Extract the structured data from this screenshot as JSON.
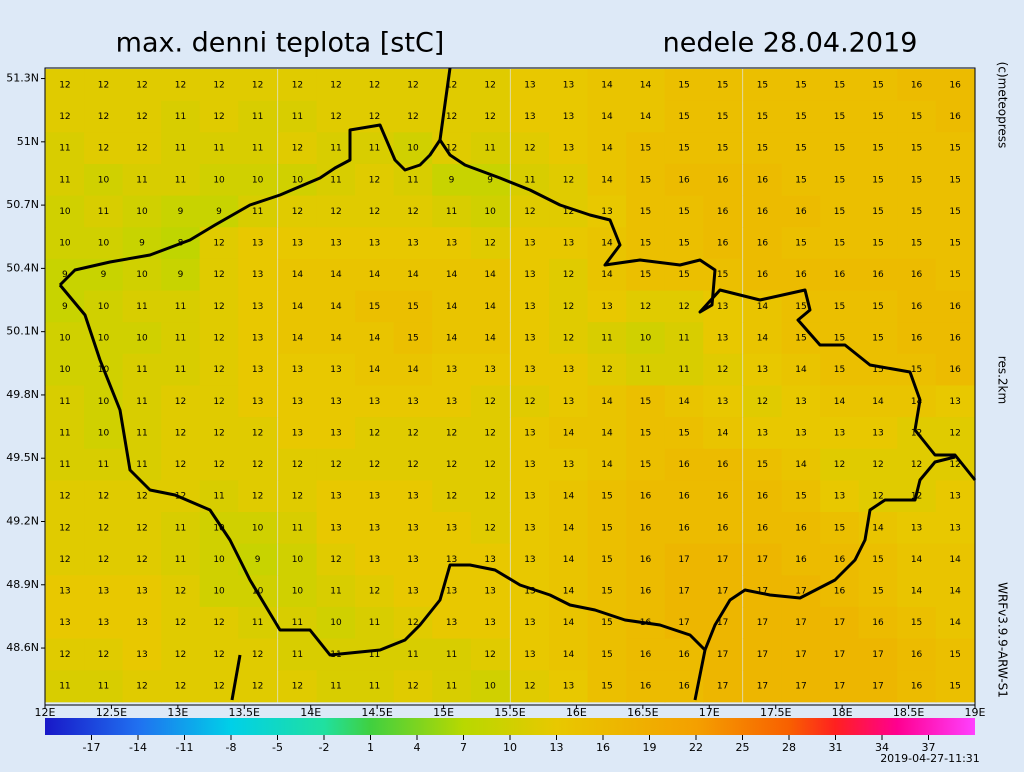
{
  "chart_data": {
    "type": "grid-map",
    "title": "max. denni teplota [stC]",
    "subtitle": "nedele 28.04.2019",
    "annotations": [
      "(c)meteopress",
      "res.2km",
      "WRFv3.9.9-ARW-S1",
      "2019-04-27-11:31"
    ],
    "xlim": [
      12,
      19
    ],
    "ylim": [
      48.33,
      51.35
    ],
    "xticks": [
      {
        "value": 12,
        "label": "12E"
      },
      {
        "value": 12.5,
        "label": "12.5E"
      },
      {
        "value": 13,
        "label": "13E"
      },
      {
        "value": 13.5,
        "label": "13.5E"
      },
      {
        "value": 14,
        "label": "14E"
      },
      {
        "value": 14.5,
        "label": "14.5E"
      },
      {
        "value": 15,
        "label": "15E"
      },
      {
        "value": 15.5,
        "label": "15.5E"
      },
      {
        "value": 16,
        "label": "16E"
      },
      {
        "value": 16.5,
        "label": "16.5E"
      },
      {
        "value": 17,
        "label": "17E"
      },
      {
        "value": 17.5,
        "label": "17.5E"
      },
      {
        "value": 18,
        "label": "18E"
      },
      {
        "value": 18.5,
        "label": "18.5E"
      },
      {
        "value": 19,
        "label": "19E"
      }
    ],
    "yticks": [
      {
        "value": 51.3,
        "label": "51.3N"
      },
      {
        "value": 51,
        "label": "51N"
      },
      {
        "value": 50.7,
        "label": "50.7N"
      },
      {
        "value": 50.4,
        "label": "50.4N"
      },
      {
        "value": 50.1,
        "label": "50.1N"
      },
      {
        "value": 49.8,
        "label": "49.8N"
      },
      {
        "value": 49.5,
        "label": "49.5N"
      },
      {
        "value": 49.2,
        "label": "49.2N"
      },
      {
        "value": 48.9,
        "label": "48.9N"
      },
      {
        "value": 48.6,
        "label": "48.6N"
      }
    ],
    "x": [
      12.15,
      12.44,
      12.73,
      13.02,
      13.31,
      13.6,
      13.9,
      14.19,
      14.48,
      14.77,
      15.06,
      15.35,
      15.65,
      15.94,
      16.23,
      16.52,
      16.81,
      17.1,
      17.4,
      17.69,
      17.98,
      18.27,
      18.56,
      18.85
    ],
    "y": [
      51.27,
      51.12,
      50.97,
      50.82,
      50.67,
      50.52,
      50.37,
      50.22,
      50.07,
      49.92,
      49.77,
      49.62,
      49.47,
      49.32,
      49.17,
      49.02,
      48.87,
      48.72,
      48.57,
      48.42
    ],
    "values": [
      [
        12,
        12,
        12,
        12,
        12,
        12,
        12,
        12,
        12,
        12,
        12,
        12,
        13,
        13,
        14,
        14,
        15,
        15,
        15,
        15,
        15,
        15,
        16,
        16
      ],
      [
        12,
        12,
        12,
        11,
        12,
        11,
        11,
        12,
        12,
        12,
        12,
        12,
        13,
        13,
        14,
        14,
        15,
        15,
        15,
        15,
        15,
        15,
        15,
        16
      ],
      [
        11,
        12,
        12,
        11,
        11,
        11,
        12,
        11,
        11,
        10,
        12,
        11,
        12,
        13,
        14,
        15,
        15,
        15,
        15,
        15,
        15,
        15,
        15,
        15
      ],
      [
        11,
        10,
        11,
        11,
        10,
        10,
        10,
        11,
        12,
        11,
        9,
        9,
        11,
        12,
        14,
        15,
        16,
        16,
        16,
        15,
        15,
        15,
        15,
        15
      ],
      [
        10,
        11,
        10,
        9,
        9,
        11,
        12,
        12,
        12,
        12,
        11,
        10,
        12,
        12,
        13,
        15,
        15,
        16,
        16,
        16,
        15,
        15,
        15,
        15
      ],
      [
        10,
        10,
        9,
        8,
        12,
        13,
        13,
        13,
        13,
        13,
        13,
        12,
        13,
        13,
        14,
        15,
        15,
        16,
        16,
        15,
        15,
        15,
        15,
        15
      ],
      [
        9,
        9,
        10,
        9,
        12,
        13,
        14,
        14,
        14,
        14,
        14,
        14,
        13,
        12,
        14,
        15,
        15,
        15,
        16,
        16,
        16,
        16,
        16,
        15
      ],
      [
        9,
        10,
        11,
        11,
        12,
        13,
        14,
        14,
        15,
        15,
        14,
        14,
        13,
        12,
        13,
        12,
        12,
        13,
        14,
        15,
        15,
        15,
        16,
        16
      ],
      [
        10,
        10,
        10,
        11,
        12,
        13,
        14,
        14,
        14,
        15,
        14,
        14,
        13,
        12,
        11,
        10,
        11,
        13,
        14,
        15,
        15,
        15,
        16,
        16
      ],
      [
        10,
        10,
        11,
        11,
        12,
        13,
        13,
        13,
        14,
        14,
        13,
        13,
        13,
        13,
        12,
        11,
        11,
        12,
        13,
        14,
        15,
        15,
        15,
        16
      ],
      [
        11,
        10,
        11,
        12,
        12,
        13,
        13,
        13,
        13,
        13,
        13,
        12,
        12,
        13,
        14,
        15,
        14,
        13,
        12,
        13,
        14,
        14,
        14,
        13
      ],
      [
        11,
        10,
        11,
        12,
        12,
        12,
        13,
        13,
        12,
        12,
        12,
        12,
        13,
        14,
        14,
        15,
        15,
        14,
        13,
        13,
        13,
        13,
        12,
        12
      ],
      [
        11,
        11,
        11,
        12,
        12,
        12,
        12,
        12,
        12,
        12,
        12,
        12,
        13,
        13,
        14,
        15,
        16,
        16,
        15,
        14,
        12,
        12,
        12,
        12
      ],
      [
        12,
        12,
        12,
        12,
        11,
        12,
        12,
        13,
        13,
        13,
        12,
        12,
        13,
        14,
        15,
        16,
        16,
        16,
        16,
        15,
        13,
        12,
        12,
        13
      ],
      [
        12,
        12,
        12,
        11,
        10,
        10,
        11,
        13,
        13,
        13,
        13,
        12,
        13,
        14,
        15,
        16,
        16,
        16,
        16,
        16,
        15,
        14,
        13,
        13
      ],
      [
        12,
        12,
        12,
        11,
        10,
        9,
        10,
        12,
        13,
        13,
        13,
        13,
        13,
        14,
        15,
        16,
        17,
        17,
        17,
        16,
        16,
        15,
        14,
        14
      ],
      [
        13,
        13,
        13,
        12,
        10,
        10,
        10,
        11,
        12,
        13,
        13,
        13,
        13,
        14,
        15,
        16,
        17,
        17,
        17,
        17,
        16,
        15,
        14,
        14
      ],
      [
        13,
        13,
        13,
        12,
        12,
        11,
        11,
        10,
        11,
        12,
        13,
        13,
        13,
        14,
        15,
        16,
        17,
        17,
        17,
        17,
        17,
        16,
        15,
        14
      ],
      [
        12,
        12,
        13,
        12,
        12,
        12,
        11,
        11,
        11,
        11,
        11,
        12,
        13,
        14,
        15,
        16,
        16,
        17,
        17,
        17,
        17,
        17,
        16,
        15
      ],
      [
        11,
        11,
        12,
        12,
        12,
        12,
        12,
        11,
        11,
        12,
        11,
        10,
        12,
        13,
        15,
        16,
        16,
        17,
        17,
        17,
        17,
        17,
        16,
        15
      ]
    ],
    "colorbar": {
      "lim": [
        -20,
        40
      ],
      "ticks": [
        -17,
        -14,
        -11,
        -8,
        -5,
        -2,
        1,
        4,
        7,
        10,
        13,
        16,
        19,
        22,
        25,
        28,
        31,
        34,
        37
      ],
      "stops": [
        {
          "value": -20,
          "color": "#1818c8"
        },
        {
          "value": -14,
          "color": "#2070f0"
        },
        {
          "value": -8,
          "color": "#00d0e8"
        },
        {
          "value": -2,
          "color": "#20e0a0"
        },
        {
          "value": 1,
          "color": "#40d040"
        },
        {
          "value": 7,
          "color": "#b8d800"
        },
        {
          "value": 13,
          "color": "#e8c800"
        },
        {
          "value": 22,
          "color": "#f4a000"
        },
        {
          "value": 28,
          "color": "#f86000"
        },
        {
          "value": 31,
          "color": "#ff2020"
        },
        {
          "value": 35,
          "color": "#ff0090"
        },
        {
          "value": 40,
          "color": "#ff40ff"
        }
      ]
    }
  }
}
